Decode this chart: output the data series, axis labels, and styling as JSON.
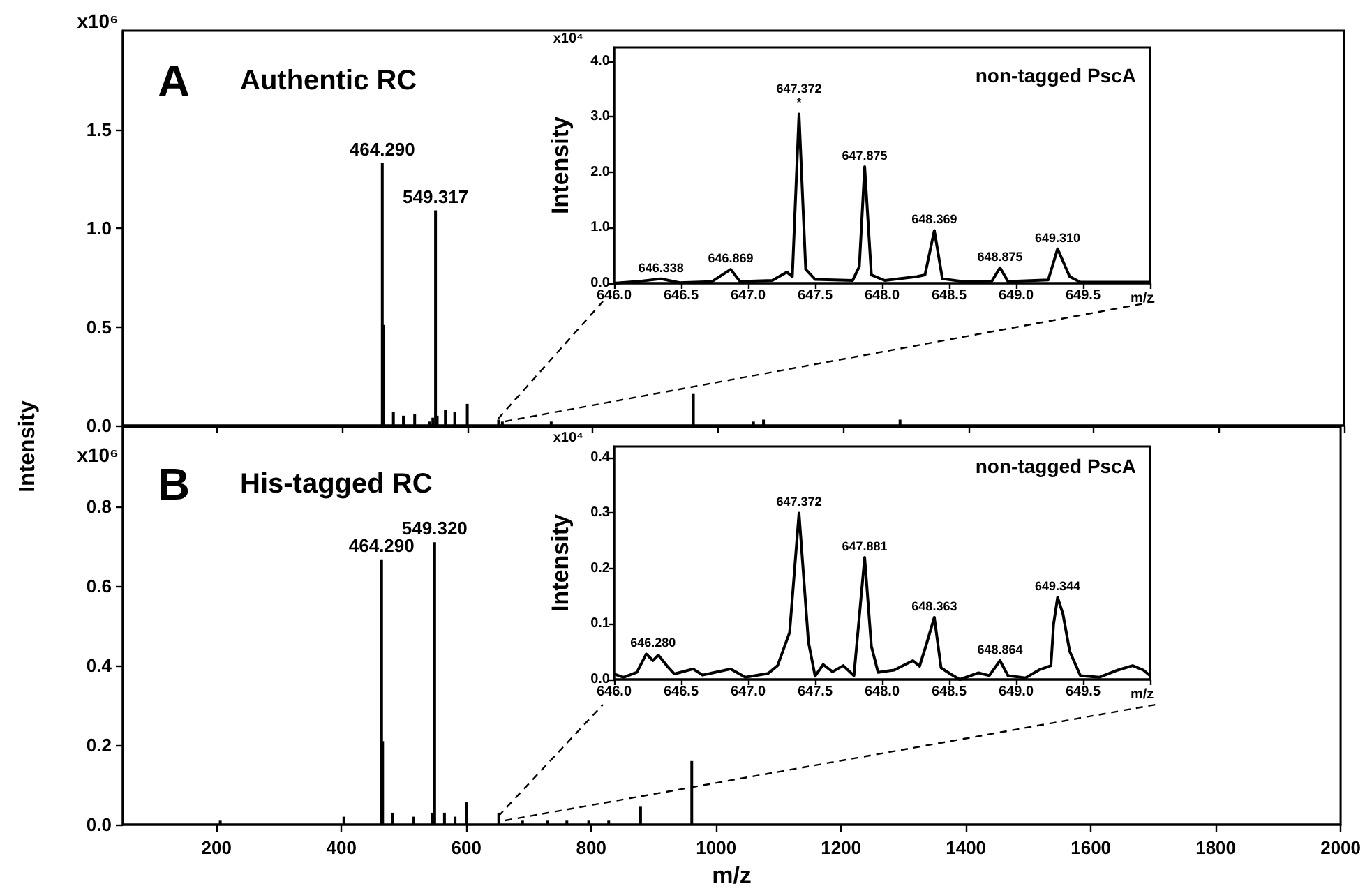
{
  "chart_data": [
    {
      "type": "bar",
      "title": "A",
      "subtitle": "Authentic RC",
      "ylabel": "Intensity",
      "annotations": [
        "x10⁶",
        {
          "text": "464.290",
          "x": 464.29,
          "y": 1.33
        },
        {
          "text": "549.317",
          "x": 549.317,
          "y": 1.09
        }
      ],
      "x": [
        464.29,
        466,
        482,
        498,
        516,
        540,
        545,
        549.317,
        552,
        565,
        580,
        600,
        650,
        656,
        734,
        961,
        1057,
        1073,
        1291
      ],
      "series": [
        {
          "color": "#000000",
          "values": [
            1.33,
            0.51,
            0.07,
            0.05,
            0.06,
            0.02,
            0.04,
            1.09,
            0.05,
            0.08,
            0.07,
            0.11,
            0.03,
            0.02,
            0.02,
            0.16,
            0.02,
            0.03,
            0.03
          ]
        }
      ],
      "xlim": [
        50,
        2000
      ],
      "ylim": [
        0,
        2
      ],
      "xticks": [
        200,
        400,
        600,
        800,
        1000,
        1200,
        1400,
        1600,
        1800,
        2000
      ],
      "yticks": [
        {
          "value": 0,
          "label": "0.0"
        },
        0.5,
        {
          "value": 1,
          "label": "1.0"
        },
        1.5
      ],
      "tick_labels": "y"
    },
    {
      "type": "line",
      "title": "non-tagged PscA",
      "xlabel": "m/z",
      "ylabel": "Intensity",
      "annotations": [
        "x10⁴",
        {
          "text": "646.338",
          "x": 646.35,
          "y": 0.08
        },
        {
          "text": "646.869",
          "x": 646.87,
          "y": 0.25
        },
        {
          "text": "647.372\n*",
          "x": 647.38,
          "y": 3.05
        },
        {
          "text": "647.875",
          "x": 647.87,
          "y": 2.1
        },
        {
          "text": "648.369",
          "x": 648.39,
          "y": 0.95
        },
        {
          "text": "648.875",
          "x": 648.88,
          "y": 0.28
        },
        {
          "text": "649.310",
          "x": 649.31,
          "y": 0.62
        }
      ],
      "x": [
        646.0,
        646.17,
        646.35,
        646.49,
        646.73,
        646.87,
        646.94,
        647.18,
        647.29,
        647.33,
        647.38,
        647.43,
        647.5,
        647.78,
        647.83,
        647.87,
        647.92,
        648.02,
        648.26,
        648.32,
        648.39,
        648.45,
        648.61,
        648.82,
        648.88,
        648.94,
        649.24,
        649.31,
        649.4,
        649.48,
        650.0
      ],
      "series": [
        {
          "color": "#000000",
          "values": [
            0,
            0.03,
            0.08,
            0.01,
            0.03,
            0.25,
            0.03,
            0.05,
            0.2,
            0.12,
            3.05,
            0.25,
            0.07,
            0.05,
            0.3,
            2.1,
            0.15,
            0.05,
            0.12,
            0.15,
            0.95,
            0.08,
            0.03,
            0.04,
            0.28,
            0.03,
            0.06,
            0.62,
            0.12,
            0.02,
            0.02
          ]
        }
      ],
      "xlim": [
        646,
        650
      ],
      "ylim": [
        0,
        4.25
      ],
      "xticks": [
        {
          "value": 646,
          "label": "646.0"
        },
        646.5,
        {
          "value": 647,
          "label": "647.0"
        },
        647.5,
        {
          "value": 648,
          "label": "648.0"
        },
        648.5,
        {
          "value": 649,
          "label": "649.0"
        },
        649.5,
        {
          "value": 650,
          "label": null
        }
      ],
      "yticks": [
        {
          "value": 0,
          "label": "0.0"
        },
        {
          "value": 1,
          "label": "1.0"
        },
        {
          "value": 2,
          "label": "2.0"
        },
        {
          "value": 3,
          "label": "3.0"
        },
        {
          "value": 4,
          "label": "4.0"
        }
      ]
    },
    {
      "type": "bar",
      "title": "B",
      "subtitle": "His-tagged RC",
      "xlabel": "m/z",
      "annotations": [
        "x10⁶",
        {
          "text": "464.290",
          "x": 464.29,
          "y": 0.667
        },
        {
          "text": "549.320",
          "x": 549.32,
          "y": 0.71
        }
      ],
      "x": [
        206,
        404,
        464.29,
        466,
        482,
        516,
        545,
        549.32,
        565,
        582,
        600,
        652,
        690,
        730,
        761,
        796,
        828,
        879,
        961
      ],
      "series": [
        {
          "color": "#000000",
          "values": [
            0.01,
            0.02,
            0.667,
            0.21,
            0.03,
            0.02,
            0.03,
            0.71,
            0.03,
            0.02,
            0.056,
            0.03,
            0.01,
            0.01,
            0.01,
            0.01,
            0.01,
            0.045,
            0.16
          ]
        }
      ],
      "xlim": [
        50,
        2000
      ],
      "ylim": [
        0,
        1
      ],
      "xticks": [
        200,
        400,
        600,
        800,
        1000,
        1200,
        1400,
        1600,
        1800,
        2000
      ],
      "yticks": [
        {
          "value": 0,
          "label": "0.0"
        },
        0.2,
        0.4,
        0.6,
        0.8
      ]
    },
    {
      "type": "line",
      "title": "non-tagged PscA",
      "xlabel": "m/z",
      "ylabel": "Intensity",
      "annotations": [
        "x10⁴",
        {
          "text": "646.280",
          "x": 646.29,
          "y": 0.046
        },
        {
          "text": "647.372",
          "x": 647.38,
          "y": 0.3
        },
        {
          "text": "647.881",
          "x": 647.87,
          "y": 0.22
        },
        {
          "text": "648.363",
          "x": 648.39,
          "y": 0.112
        },
        {
          "text": "648.864",
          "x": 648.88,
          "y": 0.034
        },
        {
          "text": "649.344",
          "x": 649.31,
          "y": 0.148
        }
      ],
      "x": [
        646.0,
        646.07,
        646.17,
        646.24,
        646.29,
        646.33,
        646.4,
        646.45,
        646.59,
        646.66,
        646.87,
        646.98,
        647.15,
        647.22,
        647.31,
        647.38,
        647.45,
        647.5,
        647.56,
        647.63,
        647.71,
        647.79,
        647.87,
        647.92,
        647.97,
        648.09,
        648.23,
        648.28,
        648.33,
        648.39,
        648.44,
        648.51,
        648.58,
        648.72,
        648.8,
        648.88,
        648.94,
        649.07,
        649.17,
        649.26,
        649.28,
        649.31,
        649.35,
        649.4,
        649.48,
        649.62,
        649.76,
        649.87,
        649.95,
        650.0
      ],
      "series": [
        {
          "color": "#000000",
          "values": [
            0.01,
            0.004,
            0.013,
            0.046,
            0.034,
            0.044,
            0.023,
            0.01,
            0.019,
            0.008,
            0.019,
            0.004,
            0.011,
            0.025,
            0.085,
            0.3,
            0.068,
            0.006,
            0.027,
            0.014,
            0.025,
            0.007,
            0.22,
            0.06,
            0.013,
            0.017,
            0.034,
            0.024,
            0.063,
            0.112,
            0.021,
            0.01,
            0,
            0.012,
            0.007,
            0.034,
            0.007,
            0.003,
            0.017,
            0.025,
            0.1,
            0.148,
            0.118,
            0.051,
            0.007,
            0.004,
            0.017,
            0.025,
            0.017,
            0.007
          ]
        }
      ],
      "xlim": [
        646,
        650
      ],
      "ylim": [
        0,
        0.42
      ],
      "xticks": [
        {
          "value": 646,
          "label": "646.0"
        },
        646.5,
        {
          "value": 647,
          "label": "647.0"
        },
        647.5,
        {
          "value": 648,
          "label": "648.0"
        },
        648.5,
        {
          "value": 649,
          "label": "649.0"
        },
        649.5,
        {
          "value": 650,
          "label": null
        }
      ],
      "yticks": [
        {
          "value": 0,
          "label": "0.0"
        },
        0.1,
        0.2,
        0.3,
        0.4
      ]
    }
  ]
}
